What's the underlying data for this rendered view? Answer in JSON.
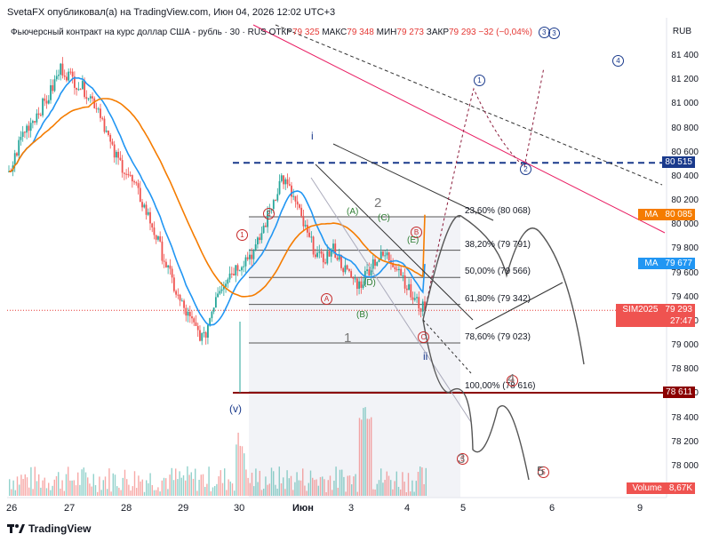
{
  "header": {
    "publisher_line": "SvetaFX опубликовал(а) на TradingView.com, Июн 04, 2026 12:02 UTC+3"
  },
  "symbol_line": {
    "name": "Фьючерсный контракт на курс доллар США - рубль · 30 · RUS",
    "open_label": "ОТКР",
    "open": "79 325",
    "high_label": "МАКС",
    "high": "79 348",
    "low_label": "МИН",
    "low": "79 273",
    "close_label": "ЗАКР",
    "close": "79 293",
    "change": "−32 (−0,04%)",
    "indicator_count": "3"
  },
  "currency": "RUB",
  "colors": {
    "candle_up": "#26a69a",
    "candle_down": "#ef5350",
    "ma_fast": "#2196f3",
    "ma_slow": "#f57c00",
    "dashed_level": "#1a3a8c",
    "support_level": "#8b0000",
    "price_line": "#e53935",
    "pink_line": "#e91e63"
  },
  "price_badges": [
    {
      "name": "level-dashed",
      "label": "",
      "value": "80 515",
      "color": "#1a3a8c",
      "price": 80515
    },
    {
      "name": "ma-slow",
      "label": "MA",
      "value": "80 085",
      "color": "#f57c00",
      "price": 80085
    },
    {
      "name": "ma-fast",
      "label": "MA",
      "value": "79 677",
      "color": "#2196f3",
      "price": 79677
    },
    {
      "name": "last-price",
      "label": "SIM2025",
      "value": "79 293",
      "countdown": "27:47",
      "color": "#ef5350",
      "price": 79293
    },
    {
      "name": "support",
      "label": "",
      "value": "78 611",
      "color": "#8b0000",
      "price": 78611
    },
    {
      "name": "volume",
      "label": "Volume",
      "value": "8,67K",
      "color": "#ef5350",
      "price": 77860
    }
  ],
  "fib_levels": [
    {
      "label": "23,60% (80 068)",
      "price": 80068
    },
    {
      "label": "38,20% (79 791)",
      "price": 79791
    },
    {
      "label": "50,00% (79 566)",
      "price": 79566
    },
    {
      "label": "61,80% (79 342)",
      "price": 79342
    },
    {
      "label": "78,60% (79 023)",
      "price": 79023
    },
    {
      "label": "100,00% (78 616)",
      "price": 78616
    }
  ],
  "wave_labels": [
    {
      "text": "(v)",
      "color": "#1a3a8c"
    },
    {
      "text": "1",
      "color": "#c62828"
    },
    {
      "text": "2",
      "color": "#c62828"
    },
    {
      "text": "3",
      "color": "#c62828"
    },
    {
      "text": "4",
      "color": "#c62828"
    },
    {
      "text": "5",
      "color": "#c62828"
    },
    {
      "text": "A",
      "color": "#c62828"
    },
    {
      "text": "B",
      "color": "#c62828"
    },
    {
      "text": "C",
      "color": "#c62828"
    },
    {
      "text": "(A)",
      "color": "#2e7d32"
    },
    {
      "text": "(B)",
      "color": "#2e7d32"
    },
    {
      "text": "(C)",
      "color": "#2e7d32"
    },
    {
      "text": "(D)",
      "color": "#2e7d32"
    },
    {
      "text": "(E)",
      "color": "#2e7d32"
    },
    {
      "text": "i",
      "color": "#1a3a8c"
    },
    {
      "text": "ii",
      "color": "#1a3a8c"
    },
    {
      "text": "1",
      "color": "#1a3a8c"
    },
    {
      "text": "2",
      "color": "#1a3a8c"
    },
    {
      "text": "3",
      "color": "#1a3a8c"
    },
    {
      "text": "4",
      "color": "#1a3a8c"
    },
    {
      "text": "1",
      "color": "#787878"
    },
    {
      "text": "2",
      "color": "#787878"
    },
    {
      "text": "3",
      "color": "#787878"
    },
    {
      "text": "4",
      "color": "#787878"
    },
    {
      "text": "5",
      "color": "#555555"
    }
  ],
  "chart_data": {
    "type": "candlestick",
    "y_axis": {
      "ticks": [
        81400,
        81200,
        81000,
        80800,
        80600,
        80400,
        80200,
        80000,
        79800,
        79600,
        79400,
        79200,
        79000,
        78800,
        78600,
        78400,
        78200,
        78000
      ],
      "tick_labels": [
        "81 400",
        "81 200",
        "81 000",
        "80 800",
        "80 600",
        "80 400",
        "80 200",
        "80 000",
        "79 800",
        "79 600",
        "79 400",
        "79 200",
        "79 000",
        "78 800",
        "78 600",
        "78 400",
        "78 200",
        "78 000"
      ],
      "ylim": [
        77800,
        81600
      ]
    },
    "x_axis": {
      "tick_labels": [
        "26",
        "27",
        "28",
        "29",
        "30",
        "Июн",
        "3",
        "4",
        "5",
        "6",
        "9"
      ]
    },
    "approx_close_path": [
      80400,
      80750,
      80900,
      81050,
      81300,
      81200,
      81100,
      80950,
      80600,
      80450,
      80250,
      80000,
      79700,
      79400,
      79200,
      79050,
      79450,
      79600,
      79700,
      79800,
      80100,
      80400,
      80200,
      79900,
      79700,
      79800,
      79600,
      79500,
      79700,
      79750,
      79650,
      79400,
      79293
    ],
    "ma_fast_end": 79677,
    "ma_slow_end": 80085,
    "last_price": 79293,
    "support": 78611,
    "resistance_dashed": 80515
  }
}
